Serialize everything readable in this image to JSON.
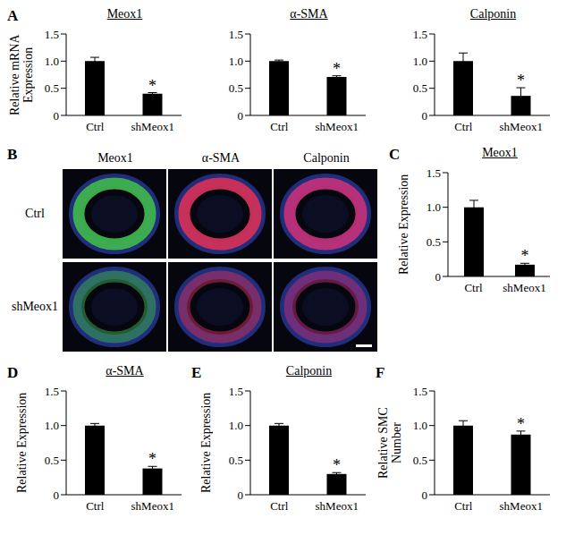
{
  "chart_data": [
    {
      "panel": "A",
      "type": "bar",
      "title": "Meox1",
      "ylabel": "Relative mRNA Expression",
      "categories": [
        "Ctrl",
        "shMeox1"
      ],
      "values": [
        1.0,
        0.4
      ],
      "errors": [
        0.07,
        0.02
      ],
      "annotations": [
        {
          "category": "shMeox1",
          "text": "*"
        }
      ],
      "color": "#000000",
      "ylim": [
        0,
        1.5
      ],
      "yticks": [
        0,
        0.5,
        {
          "value": 1,
          "label": "1.0"
        },
        1.5
      ]
    },
    {
      "type": "bar",
      "title": "α-SMA",
      "categories": [
        "Ctrl",
        "shMeox1"
      ],
      "values": [
        1.0,
        0.71
      ],
      "errors": [
        0.02,
        0.02
      ],
      "annotations": [
        {
          "category": "shMeox1",
          "text": "*"
        }
      ],
      "color": "#000000",
      "ylim": [
        0,
        1.5
      ],
      "yticks": [
        0,
        0.5,
        {
          "value": 1,
          "label": "1.0"
        },
        1.5
      ]
    },
    {
      "type": "bar",
      "title": "Calponin",
      "categories": [
        "Ctrl",
        "shMeox1"
      ],
      "values": [
        1.0,
        0.36
      ],
      "errors": [
        0.15,
        0.15
      ],
      "annotations": [
        {
          "category": "shMeox1",
          "text": "*"
        }
      ],
      "color": "#000000",
      "ylim": [
        0,
        1.5
      ],
      "yticks": [
        0,
        0.5,
        {
          "value": 1,
          "label": "1.0"
        },
        1.5
      ]
    },
    {
      "panel": "C",
      "type": "bar",
      "title": "Meox1",
      "ylabel": "Relative Expression",
      "categories": [
        "Ctrl",
        "shMeox1"
      ],
      "values": [
        1.0,
        0.17
      ],
      "errors": [
        0.1,
        0.02
      ],
      "annotations": [
        {
          "category": "shMeox1",
          "text": "*"
        }
      ],
      "color": "#000000",
      "ylim": [
        0,
        1.5
      ],
      "yticks": [
        0,
        0.5,
        {
          "value": 1,
          "label": "1.0"
        },
        1.5
      ]
    },
    {
      "panel": "D",
      "type": "bar",
      "title": "α-SMA",
      "ylabel": "Relative Expression",
      "categories": [
        "Ctrl",
        "shMeox1"
      ],
      "values": [
        1.0,
        0.38
      ],
      "errors": [
        0.03,
        0.03
      ],
      "annotations": [
        {
          "category": "shMeox1",
          "text": "*"
        }
      ],
      "color": "#000000",
      "ylim": [
        0,
        1.5
      ],
      "yticks": [
        0,
        0.5,
        {
          "value": 1,
          "label": "1.0"
        },
        1.5
      ]
    },
    {
      "panel": "E",
      "type": "bar",
      "title": "Calponin",
      "ylabel": "Relative Expression",
      "categories": [
        "Ctrl",
        "shMeox1"
      ],
      "values": [
        1.0,
        0.3
      ],
      "errors": [
        0.03,
        0.02
      ],
      "annotations": [
        {
          "category": "shMeox1",
          "text": "*"
        }
      ],
      "color": "#000000",
      "ylim": [
        0,
        1.5
      ],
      "yticks": [
        0,
        0.5,
        {
          "value": 1,
          "label": "1.0"
        },
        1.5
      ]
    },
    {
      "panel": "F",
      "type": "bar",
      "ylabel": "Relative SMC Number",
      "categories": [
        "Ctrl",
        "shMeox1"
      ],
      "values": [
        1.0,
        0.87
      ],
      "errors": [
        0.07,
        0.05
      ],
      "annotations": [
        {
          "category": "shMeox1",
          "text": "*"
        }
      ],
      "color": "#000000",
      "ylim": [
        0,
        1.5
      ],
      "yticks": [
        0,
        0.5,
        {
          "value": 1,
          "label": "1.0"
        },
        1.5
      ]
    }
  ],
  "image_panel": {
    "panel": "B",
    "columns": [
      "Meox1",
      "α-SMA",
      "Calponin"
    ],
    "rows": [
      "Ctrl",
      "shMeox1"
    ]
  }
}
